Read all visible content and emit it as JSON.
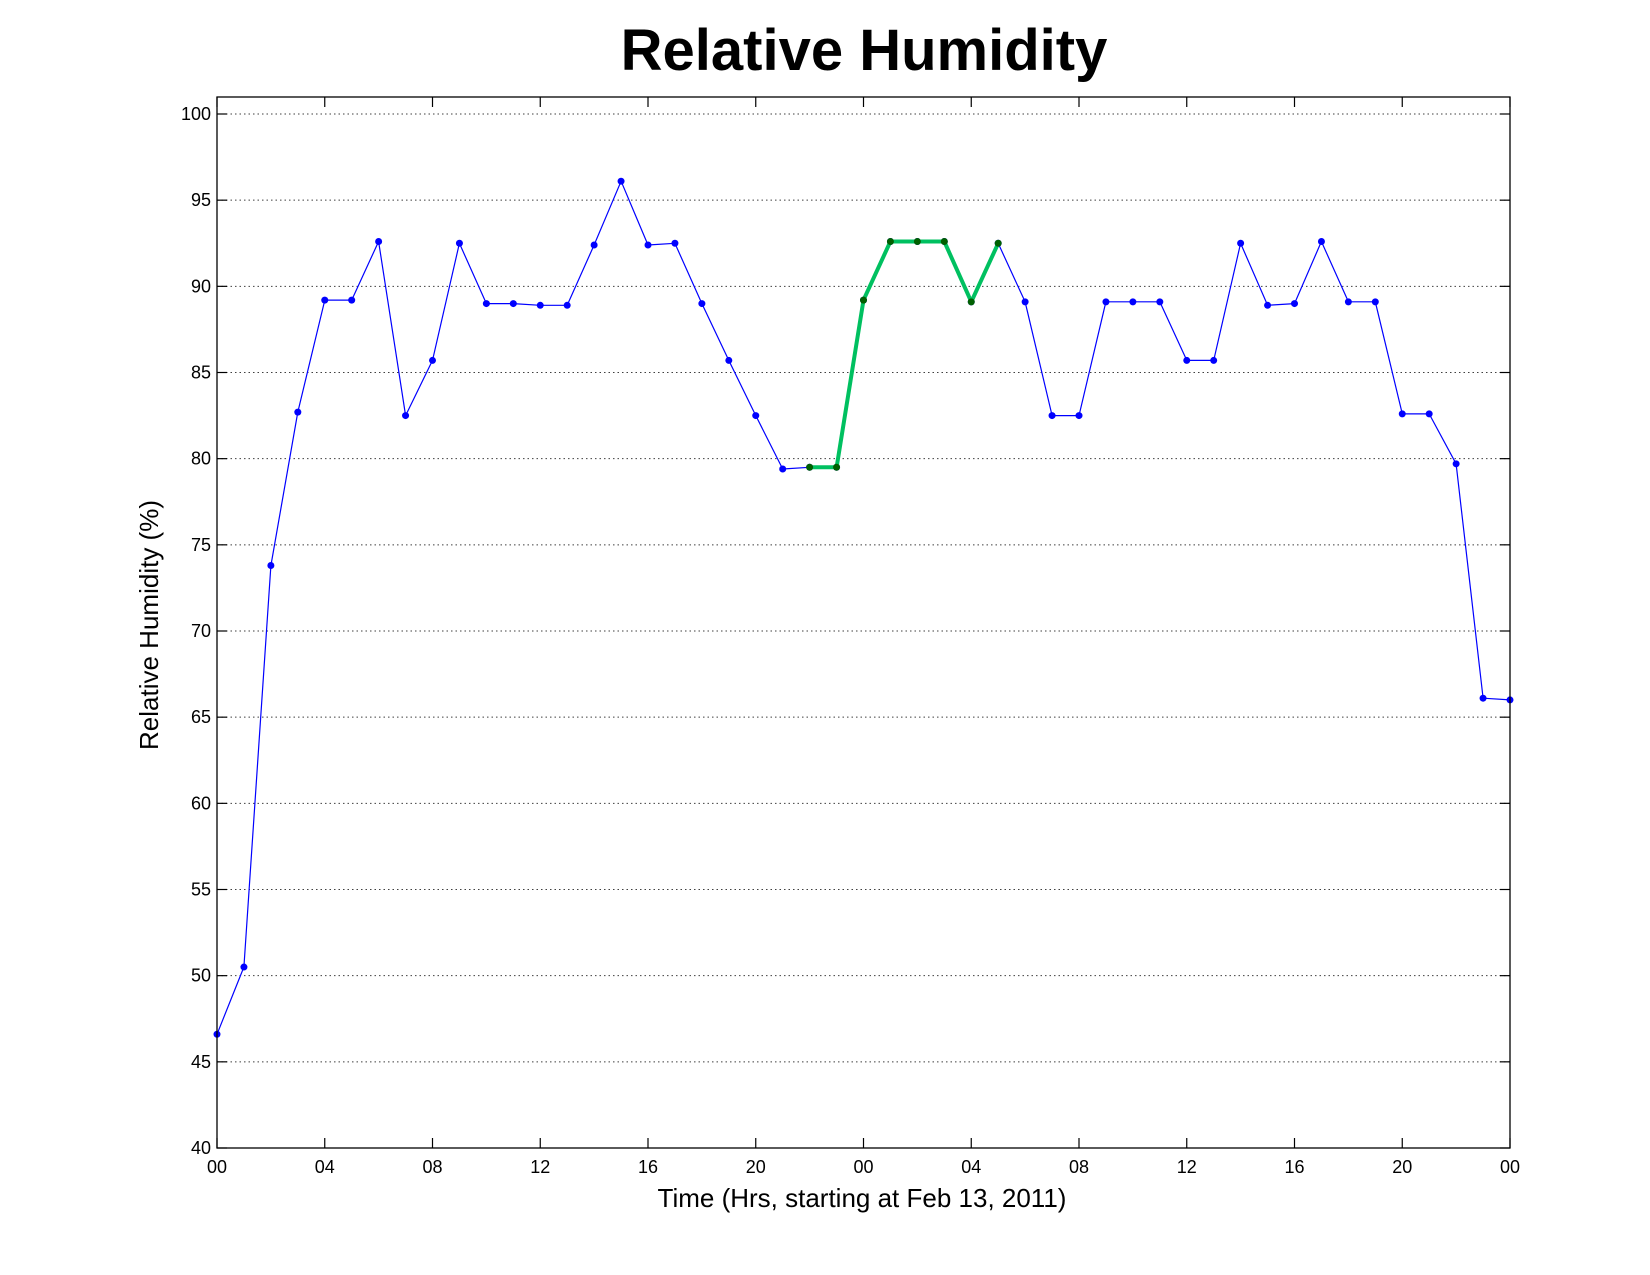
{
  "chart_data": {
    "type": "line",
    "title": "Relative Humidity",
    "xlabel": "Time (Hrs, starting at Feb 13, 2011)",
    "ylabel": "Relative Humidity (%)",
    "ylim": [
      40,
      100
    ],
    "xlim": [
      0,
      48
    ],
    "grid": true,
    "yticks": [
      40,
      45,
      50,
      55,
      60,
      65,
      70,
      75,
      80,
      85,
      90,
      95,
      100
    ],
    "xticks": [
      0,
      4,
      8,
      12,
      16,
      20,
      24,
      28,
      32,
      36,
      40,
      44,
      48
    ],
    "xtick_labels": [
      "00",
      "04",
      "08",
      "12",
      "16",
      "20",
      "00",
      "04",
      "08",
      "12",
      "16",
      "20",
      "00"
    ],
    "series": [
      {
        "color": "#0000ff",
        "marker_color": "#0000ff",
        "x": [
          0,
          1,
          2,
          3,
          4,
          5,
          6,
          7,
          8,
          9,
          10,
          11,
          12,
          13,
          14,
          15,
          16,
          17,
          18,
          19,
          20,
          21,
          22,
          23,
          24,
          25,
          26,
          27,
          28,
          29,
          30,
          31,
          32,
          33,
          34,
          35,
          36,
          37,
          38,
          39,
          40,
          41,
          42,
          43,
          44,
          45,
          46,
          47,
          48
        ],
        "values": [
          46.6,
          50.5,
          73.8,
          82.7,
          89.2,
          89.2,
          92.6,
          82.5,
          85.7,
          92.5,
          89.0,
          89.0,
          88.9,
          88.9,
          92.4,
          96.1,
          92.4,
          92.5,
          89.0,
          85.7,
          82.5,
          79.4,
          79.5,
          79.5,
          89.2,
          92.6,
          92.6,
          92.6,
          89.1,
          92.5,
          89.1,
          82.5,
          82.5,
          89.1,
          89.1,
          89.1,
          85.7,
          85.7,
          92.5,
          88.9,
          89.0,
          92.6,
          89.1,
          89.1,
          82.6,
          82.6,
          79.7,
          66.1,
          66.0
        ]
      },
      {
        "color": "#00c060",
        "marker_color": "#006000",
        "x": [
          22,
          23,
          24,
          25,
          26,
          27,
          28,
          29
        ],
        "values": [
          79.5,
          79.5,
          89.2,
          92.6,
          92.6,
          92.6,
          89.1,
          92.5
        ]
      }
    ]
  }
}
